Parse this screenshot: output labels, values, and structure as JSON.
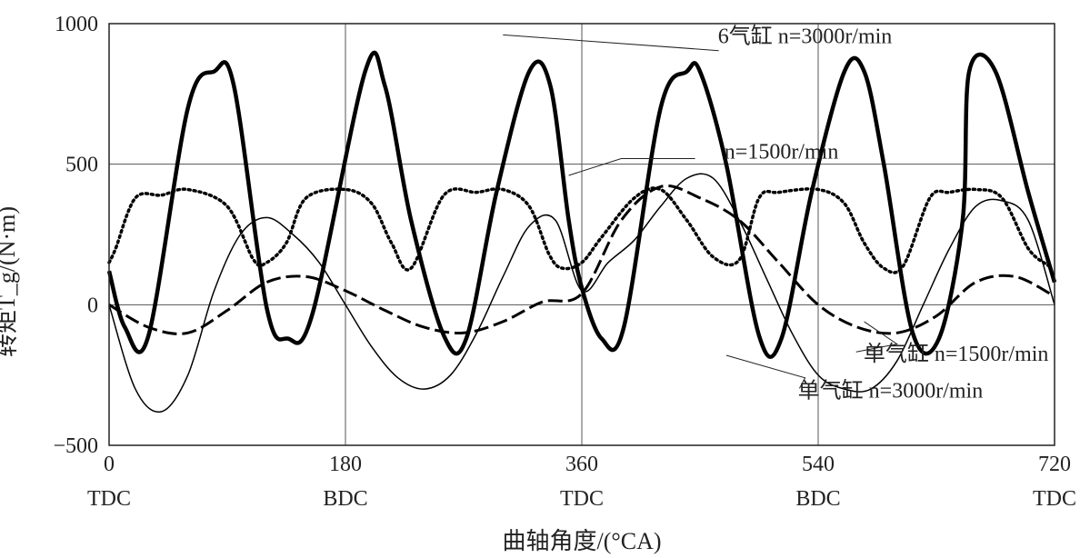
{
  "chart_data": {
    "type": "line",
    "ylabel": "转矩T_g/(N·m)",
    "xlabel": "曲轴角度/(°CA)",
    "xlim": [
      0,
      720
    ],
    "ylim": [
      -500,
      1000
    ],
    "x_ticks": [
      {
        "value": 0,
        "label": "0",
        "sublabel": "TDC"
      },
      {
        "value": 180,
        "label": "180",
        "sublabel": "BDC"
      },
      {
        "value": 360,
        "label": "360",
        "sublabel": "TDC"
      },
      {
        "value": 540,
        "label": "540",
        "sublabel": "BDC"
      },
      {
        "value": 720,
        "label": "720",
        "sublabel": "TDC"
      }
    ],
    "y_ticks": [
      {
        "value": -500,
        "label": "−500"
      },
      {
        "value": 0,
        "label": "0"
      },
      {
        "value": 500,
        "label": "500"
      },
      {
        "value": 1000,
        "label": "1000"
      }
    ],
    "grid": true,
    "series": [
      {
        "name": "6气缸 n=3000r/min",
        "style": "thick",
        "color": "#000000",
        "x": [
          0,
          12,
          30,
          60,
          80,
          95,
          120,
          136,
          155,
          195,
          210,
          230,
          255,
          272,
          295,
          320,
          336,
          350,
          360,
          375,
          392,
          420,
          440,
          450,
          470,
          495,
          512,
          535,
          560,
          575,
          590,
          612,
          632,
          650,
          655,
          675,
          700,
          720
        ],
        "y": [
          120,
          -80,
          -110,
          700,
          830,
          780,
          -10,
          -120,
          -30,
          830,
          780,
          300,
          -110,
          -120,
          400,
          830,
          780,
          300,
          60,
          -120,
          -80,
          700,
          830,
          830,
          500,
          -110,
          -120,
          400,
          830,
          830,
          500,
          -100,
          -120,
          300,
          830,
          830,
          400,
          80
        ]
      },
      {
        "name": "n=1500r/min",
        "style": "dotted",
        "color": "#000000",
        "x": [
          0,
          5,
          20,
          40,
          60,
          90,
          110,
          120,
          135,
          150,
          180,
          200,
          215,
          230,
          255,
          280,
          300,
          320,
          335,
          345,
          360,
          375,
          400,
          420,
          440,
          460,
          480,
          495,
          510,
          540,
          560,
          575,
          590,
          605,
          625,
          640,
          660,
          680,
          700,
          715
        ],
        "y": [
          150,
          200,
          380,
          390,
          410,
          350,
          160,
          150,
          220,
          380,
          410,
          360,
          220,
          130,
          390,
          400,
          410,
          350,
          180,
          130,
          150,
          240,
          380,
          410,
          300,
          170,
          160,
          380,
          400,
          410,
          360,
          220,
          130,
          140,
          380,
          400,
          410,
          380,
          200,
          140
        ]
      },
      {
        "name": "单气缸 n=1500r/min",
        "style": "dashed",
        "color": "#000000",
        "x": [
          0,
          30,
          60,
          90,
          120,
          150,
          180,
          210,
          240,
          270,
          300,
          330,
          360,
          390,
          420,
          450,
          480,
          510,
          540,
          570,
          600,
          630,
          660,
          690,
          720
        ],
        "y": [
          0,
          -80,
          -100,
          -20,
          80,
          100,
          50,
          -20,
          -80,
          -100,
          -60,
          10,
          40,
          300,
          420,
          380,
          300,
          150,
          0,
          -80,
          -100,
          -40,
          80,
          100,
          30
        ]
      },
      {
        "name": "单气缸 n=3000r/min",
        "style": "thin",
        "color": "#000000",
        "x": [
          0,
          20,
          40,
          60,
          80,
          100,
          120,
          140,
          160,
          180,
          200,
          220,
          240,
          260,
          280,
          300,
          320,
          340,
          360,
          380,
          400,
          420,
          440,
          460,
          480,
          500,
          520,
          540,
          560,
          580,
          600,
          620,
          640,
          660,
          680,
          700,
          720
        ],
        "y": [
          0,
          -300,
          -380,
          -250,
          50,
          250,
          310,
          250,
          150,
          0,
          -150,
          -260,
          -300,
          -250,
          -100,
          100,
          280,
          300,
          50,
          150,
          230,
          350,
          450,
          450,
          300,
          100,
          -100,
          -250,
          -300,
          -300,
          -200,
          0,
          200,
          350,
          370,
          300,
          0
        ]
      }
    ],
    "annotations": [
      {
        "text": "6气缸 n=3000r/min",
        "x": 530,
        "y": 930
      },
      {
        "text": "n=1500r/min",
        "x": 512,
        "y": 520
      },
      {
        "text": "单气缸 n=1500r/min",
        "x": 645,
        "y": -200
      },
      {
        "text": "单气缸 n=3000r/min",
        "x": 595,
        "y": -330
      }
    ]
  }
}
